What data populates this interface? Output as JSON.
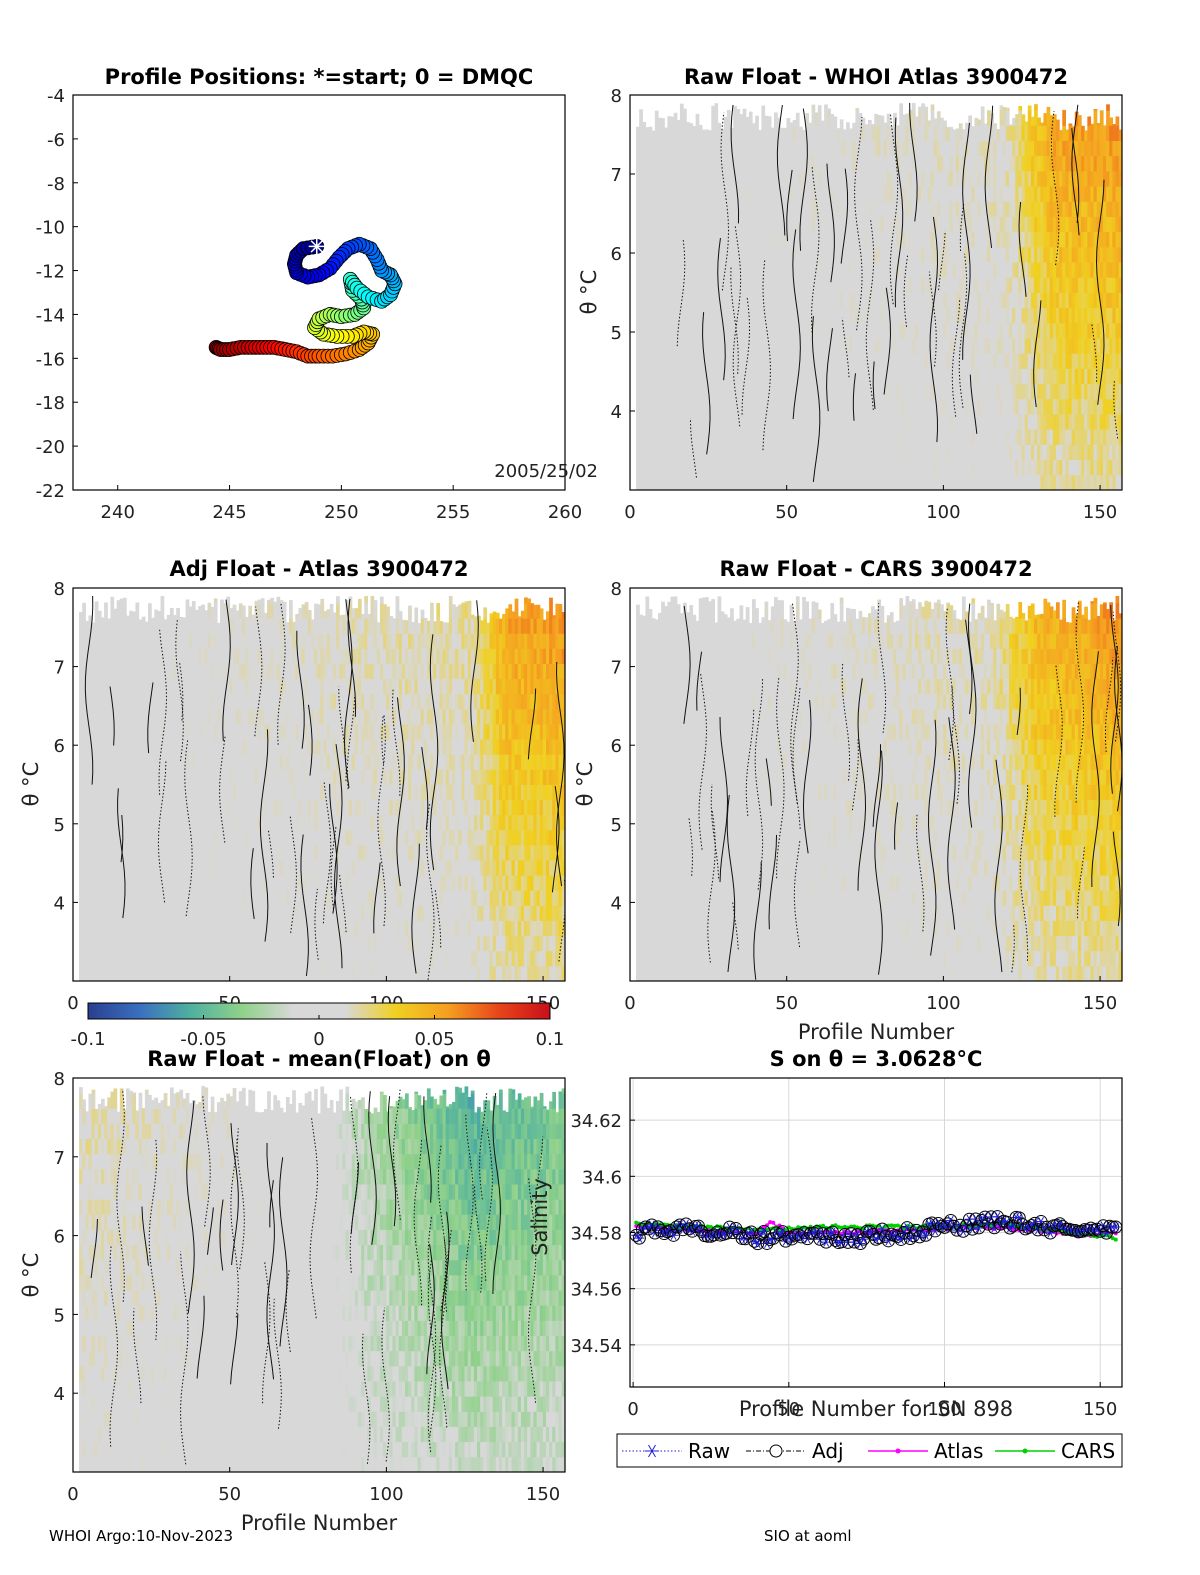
{
  "footer": {
    "left": "WHOI Argo:10-Nov-2023",
    "right": "SIO at aoml"
  },
  "chart_data": [
    {
      "id": "positions",
      "type": "scatter",
      "title": "Profile Positions: *=start; 0 = DMQC",
      "xlim": [
        238,
        260
      ],
      "ylim": [
        -22,
        -4
      ],
      "xticks": [
        "240",
        "245",
        "250",
        "255",
        "260"
      ],
      "yticks": [
        "-4",
        "-6",
        "-8",
        "-10",
        "-12",
        "-14",
        "-16",
        "-18",
        "-20",
        "-22"
      ],
      "annotation": "2005/25/02",
      "start_marker": "*",
      "track": [
        [
          248.9,
          -10.9
        ],
        [
          248.3,
          -11.0
        ],
        [
          248.0,
          -11.3
        ],
        [
          247.9,
          -11.7
        ],
        [
          248.0,
          -12.1
        ],
        [
          248.5,
          -12.3
        ],
        [
          249.0,
          -12.2
        ],
        [
          249.5,
          -11.9
        ],
        [
          249.9,
          -11.4
        ],
        [
          250.3,
          -11.0
        ],
        [
          250.8,
          -10.8
        ],
        [
          251.3,
          -11.0
        ],
        [
          251.6,
          -11.5
        ],
        [
          251.8,
          -12.0
        ],
        [
          252.2,
          -12.2
        ],
        [
          252.4,
          -12.6
        ],
        [
          252.2,
          -13.1
        ],
        [
          251.8,
          -13.4
        ],
        [
          251.2,
          -13.2
        ],
        [
          250.7,
          -12.8
        ],
        [
          250.4,
          -12.4
        ],
        [
          250.5,
          -12.9
        ],
        [
          250.9,
          -13.3
        ],
        [
          251.0,
          -13.7
        ],
        [
          250.6,
          -14.0
        ],
        [
          250.0,
          -14.1
        ],
        [
          249.5,
          -14.0
        ],
        [
          249.0,
          -14.2
        ],
        [
          248.8,
          -14.6
        ],
        [
          249.2,
          -14.9
        ],
        [
          249.8,
          -15.0
        ],
        [
          250.5,
          -15.0
        ],
        [
          251.0,
          -14.8
        ],
        [
          251.4,
          -14.9
        ],
        [
          251.2,
          -15.3
        ],
        [
          250.8,
          -15.6
        ],
        [
          250.2,
          -15.8
        ],
        [
          249.6,
          -15.9
        ],
        [
          249.0,
          -15.9
        ],
        [
          248.5,
          -15.9
        ],
        [
          248.0,
          -15.7
        ],
        [
          247.5,
          -15.6
        ],
        [
          247.0,
          -15.5
        ],
        [
          246.5,
          -15.5
        ],
        [
          246.0,
          -15.5
        ],
        [
          245.5,
          -15.5
        ],
        [
          245.0,
          -15.6
        ],
        [
          244.6,
          -15.6
        ],
        [
          244.4,
          -15.5
        ]
      ]
    },
    {
      "id": "raw-whoi",
      "type": "heatmap",
      "title": "Raw Float - WHOI Atlas  3900472",
      "xlim": [
        0,
        157
      ],
      "ylim": [
        3.0,
        8.0
      ],
      "xticks": [
        "0",
        "50",
        "100",
        "150"
      ],
      "yticks": [
        "4",
        "5",
        "6",
        "7",
        "8"
      ],
      "ylabel": "θ °C",
      "bias": [
        [
          0.0,
          0.0
        ],
        [
          0.75,
          0.01
        ],
        [
          0.85,
          0.045
        ],
        [
          1.0,
          0.05
        ]
      ]
    },
    {
      "id": "adj-atlas",
      "type": "heatmap",
      "title": "Adj Float - Atlas  3900472",
      "xlim": [
        0,
        157
      ],
      "ylim": [
        3.0,
        8.0
      ],
      "xticks": [
        "0",
        "50",
        "100",
        "150"
      ],
      "yticks": [
        "4",
        "5",
        "6",
        "7",
        "8"
      ],
      "ylabel": "θ °C",
      "bias": [
        [
          0.0,
          0.0
        ],
        [
          0.8,
          0.015
        ],
        [
          0.87,
          0.045
        ],
        [
          1.0,
          0.05
        ]
      ]
    },
    {
      "id": "raw-cars",
      "type": "heatmap",
      "title": "Raw Float - CARS  3900472",
      "xlim": [
        0,
        157
      ],
      "ylim": [
        3.0,
        8.0
      ],
      "xticks": [
        "0",
        "50",
        "100",
        "150"
      ],
      "yticks": [
        "4",
        "5",
        "6",
        "7",
        "8"
      ],
      "ylabel": "θ °C",
      "xlabel": "Profile Number",
      "bias": [
        [
          0.0,
          0.0
        ],
        [
          0.72,
          0.012
        ],
        [
          0.82,
          0.04
        ],
        [
          1.0,
          0.05
        ]
      ]
    },
    {
      "id": "raw-mean",
      "type": "heatmap",
      "title": "Raw Float - mean(Float) on θ",
      "xlim": [
        0,
        157
      ],
      "ylim": [
        3.0,
        8.0
      ],
      "xticks": [
        "0",
        "50",
        "100",
        "150"
      ],
      "yticks": [
        "4",
        "5",
        "6",
        "7",
        "8"
      ],
      "ylabel": "θ °C",
      "xlabel": "Profile Number",
      "bias": [
        [
          0.0,
          0.012
        ],
        [
          0.08,
          0.01
        ],
        [
          0.5,
          0.0
        ],
        [
          0.58,
          -0.02
        ],
        [
          0.8,
          -0.045
        ],
        [
          1.0,
          -0.035
        ]
      ]
    },
    {
      "id": "salinity",
      "type": "line",
      "title": "S on θ = 3.0628°C",
      "xlim": [
        -1,
        157
      ],
      "ylim": [
        34.525,
        34.635
      ],
      "xticks": [
        "0",
        "50",
        "100",
        "150"
      ],
      "yticks": [
        "34.54",
        "34.56",
        "34.58",
        "34.6",
        "34.62"
      ],
      "ylabel": "Salinity",
      "xlabel": "Profile Number for SN 898",
      "legend": [
        "Raw",
        "Adj",
        "Atlas",
        "CARS"
      ],
      "legend_position": "below",
      "colors": {
        "raw": "#1f1fd6",
        "adj": "#000000",
        "atlas": "#ff00ff",
        "cars": "#00d000"
      },
      "series_base": [
        [
          0,
          34.58
        ],
        [
          10,
          34.581
        ],
        [
          20,
          34.581
        ],
        [
          30,
          34.58
        ],
        [
          40,
          34.578
        ],
        [
          50,
          34.579
        ],
        [
          60,
          34.579
        ],
        [
          70,
          34.578
        ],
        [
          80,
          34.579
        ],
        [
          90,
          34.58
        ],
        [
          100,
          34.582
        ],
        [
          110,
          34.583
        ],
        [
          120,
          34.584
        ],
        [
          130,
          34.582
        ],
        [
          140,
          34.581
        ],
        [
          150,
          34.582
        ],
        [
          155,
          34.582
        ]
      ],
      "atlas_base": [
        [
          0,
          34.582
        ],
        [
          20,
          34.581
        ],
        [
          40,
          34.58
        ],
        [
          44,
          34.584
        ],
        [
          50,
          34.58
        ],
        [
          70,
          34.58
        ],
        [
          90,
          34.581
        ],
        [
          110,
          34.582
        ],
        [
          130,
          34.581
        ],
        [
          145,
          34.579
        ],
        [
          155,
          34.58
        ]
      ],
      "cars_base": [
        [
          0,
          34.583
        ],
        [
          20,
          34.582
        ],
        [
          40,
          34.581
        ],
        [
          60,
          34.582
        ],
        [
          80,
          34.582
        ],
        [
          100,
          34.582
        ],
        [
          120,
          34.583
        ],
        [
          140,
          34.58
        ],
        [
          155,
          34.578
        ]
      ]
    }
  ],
  "colorbar": {
    "range": [
      -0.1,
      0.1
    ],
    "ticks": [
      "-0.1",
      "-0.05",
      "0",
      "0.05",
      "0.1"
    ],
    "colormap": [
      "#2a3f8f",
      "#3a6fc0",
      "#4fb0a0",
      "#8fd18a",
      "#d8d8d8",
      "#d8d8d8",
      "#f0d020",
      "#f5a020",
      "#e8451a",
      "#c80f1a"
    ]
  }
}
